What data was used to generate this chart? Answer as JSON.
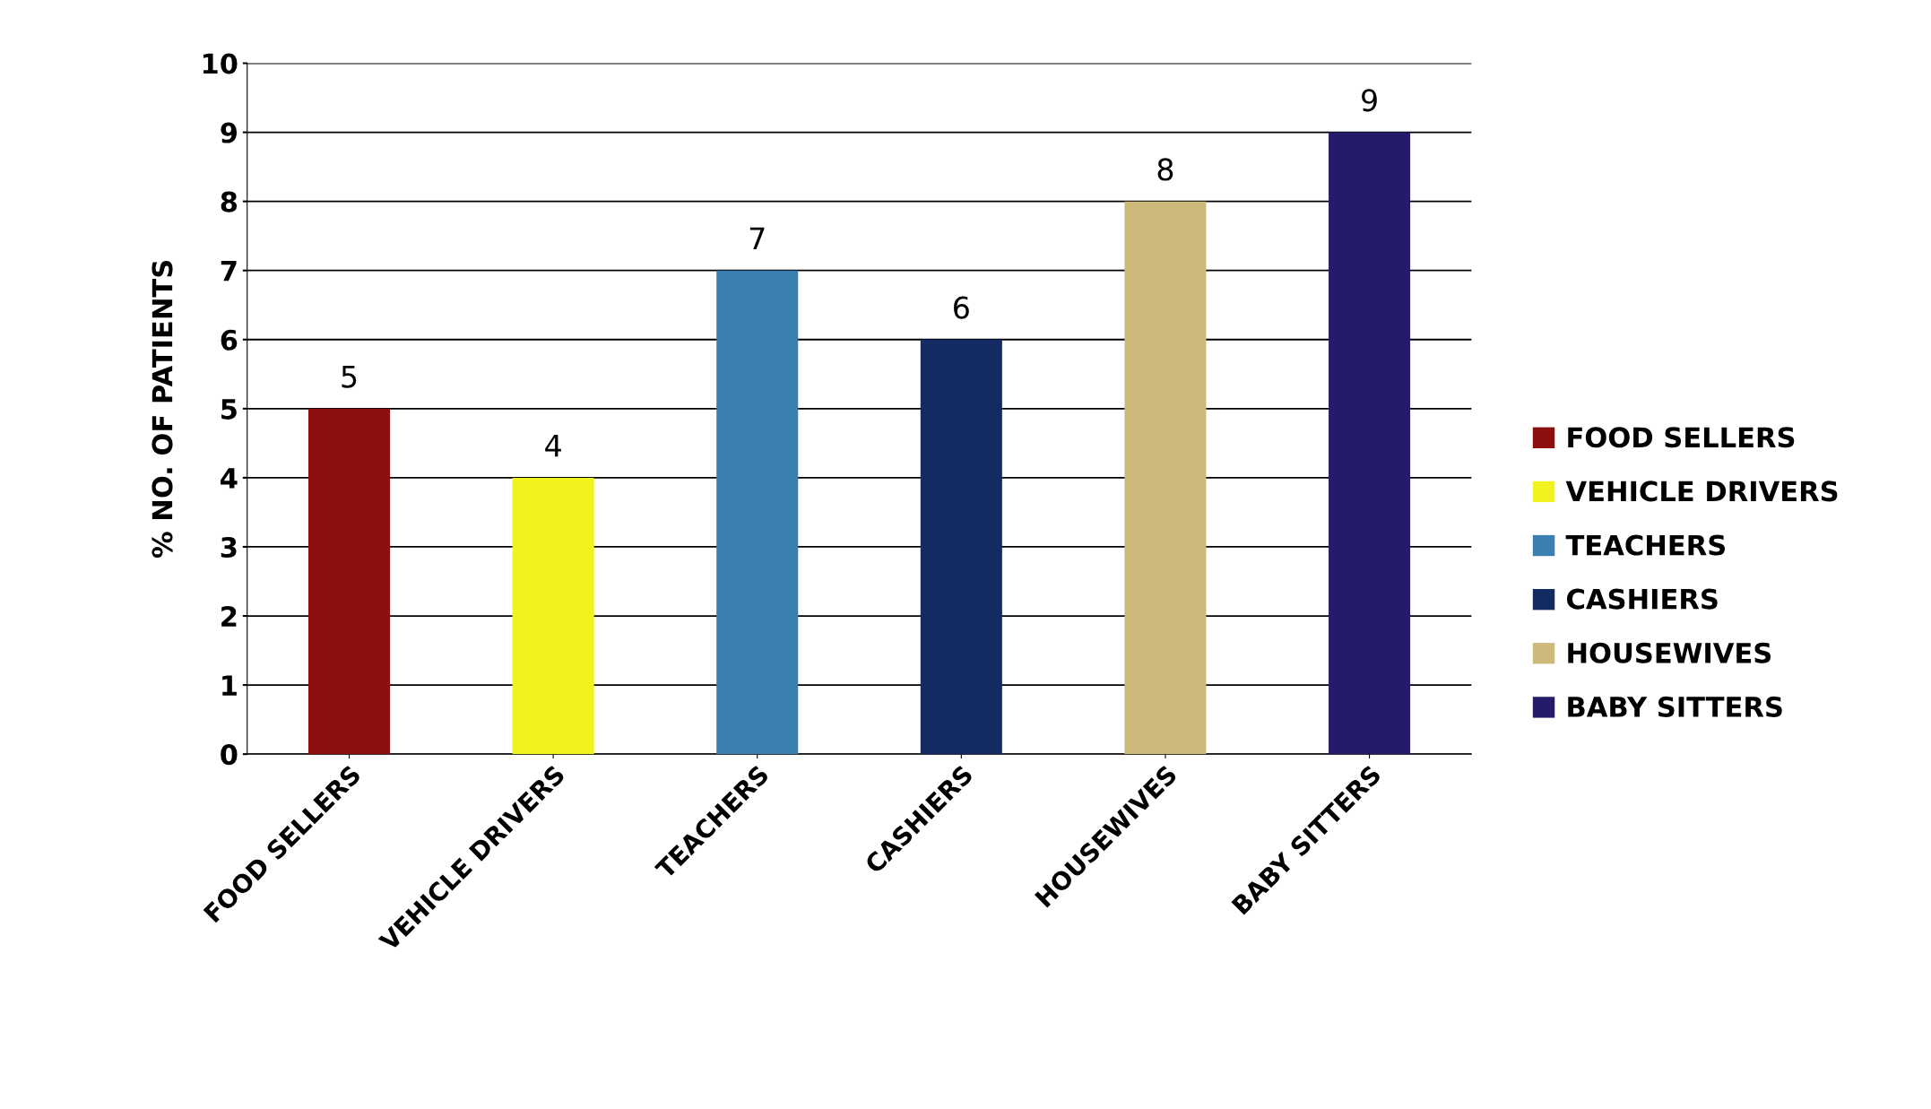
{
  "chart_data": {
    "type": "bar",
    "ylabel": "% NO. OF PATIENTS",
    "categories": [
      "FOOD SELLERS",
      "VEHICLE DRIVERS",
      "TEACHERS",
      "CASHIERS",
      "HOUSEWIVES",
      "BABY SITTERS"
    ],
    "series": [
      {
        "name": "FOOD SELLERS",
        "color": "#8b0f0f",
        "values": [
          5,
          null,
          null,
          null,
          null,
          null
        ]
      },
      {
        "name": "VEHICLE DRIVERS",
        "color": "#f2f21e",
        "values": [
          null,
          4,
          null,
          null,
          null,
          null
        ]
      },
      {
        "name": "TEACHERS",
        "color": "#3a7fb0",
        "values": [
          null,
          null,
          7,
          null,
          null,
          null
        ]
      },
      {
        "name": "CASHIERS",
        "color": "#132a63",
        "values": [
          null,
          null,
          null,
          6,
          null,
          null
        ]
      },
      {
        "name": "HOUSEWIVES",
        "color": "#cdb97a",
        "values": [
          null,
          null,
          null,
          null,
          8,
          null
        ]
      },
      {
        "name": "BABY SITTERS",
        "color": "#241c6a",
        "values": [
          null,
          null,
          null,
          null,
          null,
          9
        ]
      }
    ],
    "ylim": [
      0,
      10
    ],
    "yticks": [
      0,
      1,
      2,
      3,
      4,
      5,
      6,
      7,
      8,
      9,
      10
    ],
    "grid": "y",
    "legend": "right",
    "data_labels": true
  }
}
